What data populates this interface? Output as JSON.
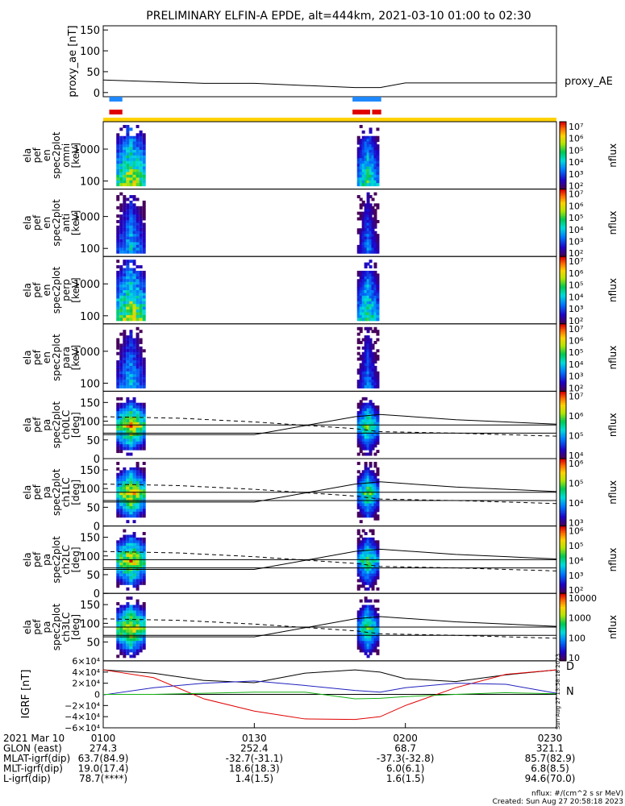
{
  "title": "PRELIMINARY ELFIN-A EPDE, alt=444km, 2021-03-10 01:00 to 02:30",
  "colors": {
    "axis": "#000000",
    "bar_blue": "#1e88ff",
    "bar_red": "#e00000",
    "bar_yellow": "#ffd200",
    "igrf_x": "#e00000",
    "igrf_y": "#2020c0",
    "igrf_z": "#10b010",
    "igrf_total": "#000000"
  },
  "chart_data": [
    {
      "id": "proxy_ae",
      "type": "line",
      "ylabel": "proxy_ae [nT]",
      "legend": "proxy_AE",
      "ylim": [
        -10,
        160
      ],
      "yticks": [
        "0",
        "50",
        "100",
        "150"
      ],
      "x_minutes": [
        0,
        20,
        30,
        50,
        55,
        60,
        90
      ],
      "values": [
        30,
        22,
        22,
        12,
        12,
        23,
        23
      ]
    },
    {
      "id": "bars",
      "type": "timeline",
      "blue_segments": [
        [
          1.2,
          3.8
        ],
        [
          49.5,
          55.2
        ]
      ],
      "red_segments": [
        [
          1.2,
          3.8
        ],
        [
          49.5,
          53.0
        ],
        [
          53.4,
          55.2
        ]
      ],
      "yellow_full": true
    },
    {
      "id": "omni",
      "type": "heatmap",
      "ylabel_lines": [
        "ela",
        "pef",
        "en",
        "spec2plot",
        "omni",
        "[keV]"
      ],
      "yticks": [
        "100",
        "1000"
      ],
      "colorbar": {
        "label": "nflux",
        "ticks": [
          "10⁷",
          "10⁶",
          "10⁵",
          "10⁴",
          "10³",
          "10²"
        ]
      }
    },
    {
      "id": "anti",
      "type": "heatmap",
      "ylabel_lines": [
        "ela",
        "pef",
        "en",
        "spec2plot",
        "anti",
        "[keV]"
      ],
      "yticks": [
        "100",
        "1000"
      ],
      "colorbar": {
        "label": "nflux",
        "ticks": [
          "10⁷",
          "10⁶",
          "10⁵",
          "10⁴",
          "10³",
          "10²"
        ]
      }
    },
    {
      "id": "perp",
      "type": "heatmap",
      "ylabel_lines": [
        "ela",
        "pef",
        "en",
        "spec2plot",
        "perp",
        "[keV]"
      ],
      "yticks": [
        "100",
        "1000"
      ],
      "colorbar": {
        "label": "nflux",
        "ticks": [
          "10⁷",
          "10⁶",
          "10⁵",
          "10⁴",
          "10³",
          "10²"
        ]
      }
    },
    {
      "id": "para",
      "type": "heatmap",
      "ylabel_lines": [
        "ela",
        "pef",
        "en",
        "spec2plot",
        "para",
        "[keV]"
      ],
      "yticks": [
        "100",
        "1000"
      ],
      "colorbar": {
        "label": "nflux",
        "ticks": [
          "10⁷",
          "10⁶",
          "10⁵",
          "10⁴",
          "10³",
          "10²"
        ]
      }
    },
    {
      "id": "ch0",
      "type": "heatmap",
      "ylabel_lines": [
        "ela",
        "pef",
        "pa",
        "spec2plot",
        "ch0LC",
        "[deg]"
      ],
      "yticks": [
        "0",
        "50",
        "100",
        "150"
      ],
      "colorbar": {
        "label": "nflux",
        "ticks": [
          "10⁷",
          "10⁶",
          "10⁵",
          "10⁴"
        ]
      }
    },
    {
      "id": "ch1",
      "type": "heatmap",
      "ylabel_lines": [
        "ela",
        "pef",
        "pa",
        "spec2plot",
        "ch1LC",
        "[deg]"
      ],
      "yticks": [
        "0",
        "50",
        "100",
        "150"
      ],
      "colorbar": {
        "label": "nflux",
        "ticks": [
          "10⁶",
          "10⁵",
          "10⁴",
          "10³"
        ]
      }
    },
    {
      "id": "ch2",
      "type": "heatmap",
      "ylabel_lines": [
        "ela",
        "pef",
        "pa",
        "spec2plot",
        "ch2LC",
        "[deg]"
      ],
      "yticks": [
        "0",
        "50",
        "100",
        "150"
      ],
      "colorbar": {
        "label": "nflux",
        "ticks": [
          "10⁶",
          "10⁵",
          "10⁴",
          "10³",
          "10²"
        ]
      }
    },
    {
      "id": "ch3",
      "type": "heatmap",
      "ylabel_lines": [
        "ela",
        "pef",
        "pa",
        "spec2plot",
        "ch3LC",
        "[deg]"
      ],
      "yticks": [
        "50",
        "100",
        "150"
      ],
      "colorbar": {
        "label": "nflux",
        "ticks": [
          "10000",
          "1000",
          "100",
          "10"
        ]
      }
    },
    {
      "id": "igrf",
      "type": "line",
      "ylabel": "IGRF [nT]",
      "ylim": [
        -60000,
        60000
      ],
      "yticks": [
        "6×10⁴",
        "4×10⁴",
        "2×10⁴",
        "0",
        "−2×10⁴",
        "−4×10⁴",
        "−6×10⁴"
      ],
      "legend": [
        "D",
        "N"
      ],
      "x_minutes": [
        0,
        10,
        20,
        30,
        40,
        50,
        55,
        60,
        70,
        80,
        90
      ],
      "series": [
        {
          "color": "#000000",
          "values": [
            44000,
            38000,
            25000,
            21000,
            38000,
            44000,
            40000,
            28000,
            23000,
            35000,
            44000
          ]
        },
        {
          "color": "#e00000",
          "values": [
            44000,
            30000,
            -8000,
            -30000,
            -44000,
            -45000,
            -40000,
            -20000,
            12000,
            36000,
            44000
          ]
        },
        {
          "color": "#2020c0",
          "values": [
            -1000,
            12000,
            20000,
            24000,
            16000,
            7000,
            4000,
            12000,
            20000,
            18000,
            2000
          ]
        },
        {
          "color": "#10b010",
          "values": [
            0,
            0,
            2000,
            4000,
            4000,
            -8000,
            -7000,
            -4000,
            0,
            3000,
            1000
          ]
        }
      ]
    }
  ],
  "time_axis": {
    "rows": [
      [
        "2021 Mar 10",
        "0100",
        "0130",
        "0200",
        "0230"
      ],
      [
        "GLON (east)",
        "274.3",
        "252.4",
        "68.7",
        "321.1"
      ],
      [
        "MLAT-igrf(dip)",
        "63.7(84.9)",
        "-32.7(-31.1)",
        "-37.3(-32.8)",
        "85.7(82.9)"
      ],
      [
        "MLT-igrf(dip)",
        "19.0(17.4)",
        "18.6(18.3)",
        "6.0(6.1)",
        "6.8(8.5)"
      ],
      [
        "L-igrf(dip)",
        "78.7(****)",
        "1.4(1.5)",
        "1.6(1.5)",
        "94.6(70.0)"
      ]
    ]
  },
  "footer": {
    "units": "nflux: #/(cm^2 s sr MeV)",
    "created": "Created: Sun Aug 27 20:58:18 2023",
    "side_stamp": "Sun Aug 27 13:58:18 2023"
  }
}
